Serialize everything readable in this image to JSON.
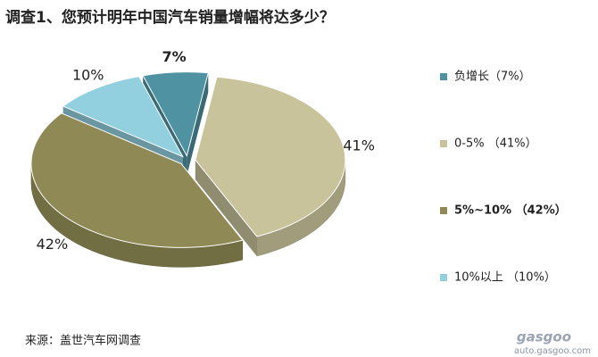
{
  "chart_data": {
    "type": "pie",
    "title": "调查1、您预计明年中国汽车销量增幅将达多少？",
    "categories": [
      "负增长（7%）",
      "0-5% （41%）",
      "5%~10% （42%）",
      "10%以上 （10%）"
    ],
    "values": [
      7,
      41,
      42,
      10
    ],
    "value_labels": [
      "7%",
      "41%",
      "42%",
      "10%"
    ],
    "colors": [
      "#4f93a3",
      "#c8c39b",
      "#8f8a55",
      "#92d0df"
    ],
    "legend": "right",
    "source": "来源：盖世汽车网调查",
    "watermark": [
      "gasgoo",
      "auto.gasgoo.com"
    ]
  }
}
